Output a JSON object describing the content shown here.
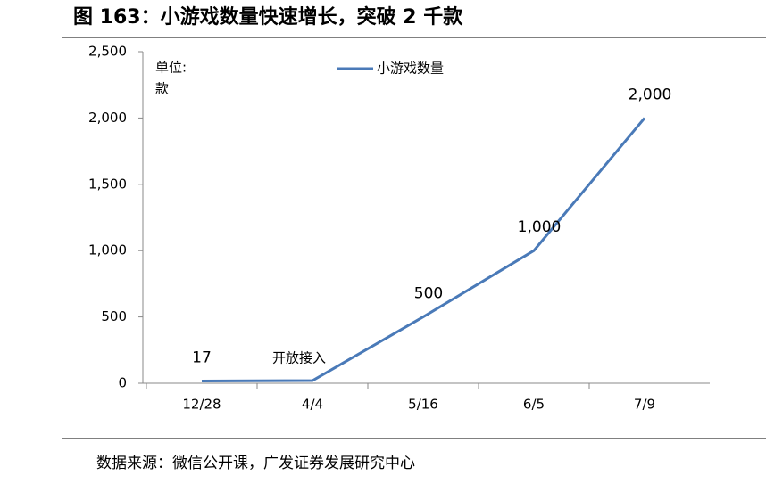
{
  "chart_data": {
    "type": "line",
    "title": "图 163：小游戏数量快速增长，突破 2 千款",
    "unit_label": [
      "单位:",
      "款"
    ],
    "annotation": "开放接入",
    "source": "数据来源：微信公开课，广发证券发展研究中心",
    "categories": [
      "12/28",
      "4/4",
      "5/16",
      "6/5",
      "7/9"
    ],
    "series": [
      {
        "name": "小游戏数量",
        "color": "#4a7ab8",
        "values": [
          17,
          20,
          500,
          1000,
          2000
        ],
        "value_labels": [
          "17",
          null,
          "500",
          "1,000",
          "2,000"
        ]
      }
    ],
    "ylim": [
      0,
      2500
    ],
    "yticks": [
      0,
      500,
      {
        "value": 1000,
        "label": "1,000"
      },
      {
        "value": 1500,
        "label": "1,500"
      },
      {
        "value": 2000,
        "label": "2,000"
      },
      {
        "value": 2500,
        "label": "2,500"
      }
    ],
    "grid": false
  }
}
